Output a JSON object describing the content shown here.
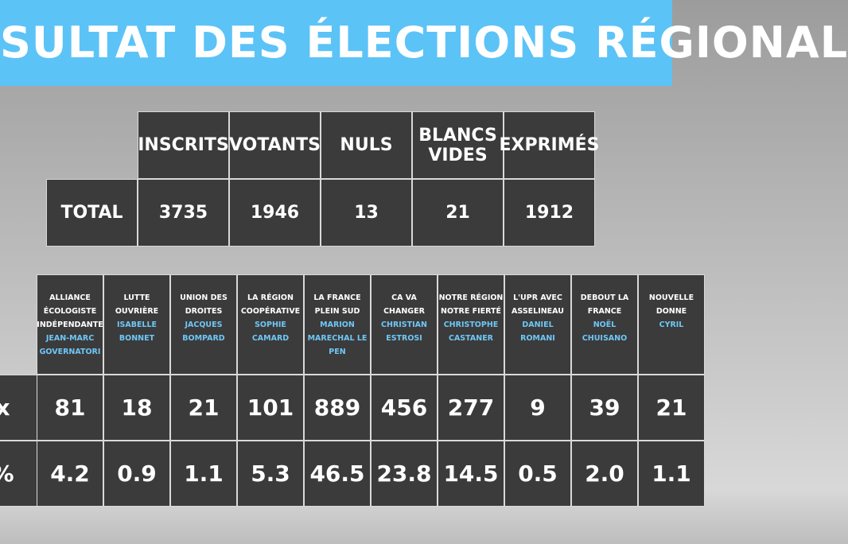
{
  "title": "SULTAT DES ÉLECTIONS RÉGIONAL",
  "summary": {
    "headers": [
      "INSCRITS",
      "VOTANTS",
      "NULS",
      "BLANCS VIDES",
      "EXPRIMÉS"
    ],
    "row_label": "TOTAL",
    "values": [
      "3735",
      "1946",
      "13",
      "21",
      "1912"
    ]
  },
  "results": {
    "row_labels": [
      "x",
      "%"
    ],
    "columns": [
      {
        "party": "ALLIANCE ÉCOLOGISTE INDÉPENDANTE",
        "candidate": "JEAN-MARC GOVERNATORI",
        "votes": "81",
        "percent": "4.2"
      },
      {
        "party": "LUTTE OUVRIÈRE",
        "candidate": "ISABELLE BONNET",
        "votes": "18",
        "percent": "0.9"
      },
      {
        "party": "UNION DES DROITES",
        "candidate": "JACQUES BOMPARD",
        "votes": "21",
        "percent": "1.1"
      },
      {
        "party": "LA RÉGION COOPÉRATIVE",
        "candidate": "SOPHIE CAMARD",
        "votes": "101",
        "percent": "5.3"
      },
      {
        "party": "LA FRANCE PLEIN SUD",
        "candidate": "MARION MARECHAL LE PEN",
        "votes": "889",
        "percent": "46.5"
      },
      {
        "party": "CA VA CHANGER",
        "candidate": "CHRISTIAN ESTROSI",
        "votes": "456",
        "percent": "23.8"
      },
      {
        "party": "NOTRE RÉGION NOTRE FIERTÉ",
        "candidate": "CHRISTOPHE CASTANER",
        "votes": "277",
        "percent": "14.5"
      },
      {
        "party": "L'UPR AVEC ASSELINEAU",
        "candidate": "DANIEL ROMANI",
        "votes": "9",
        "percent": "0.5"
      },
      {
        "party": "DEBOUT LA FRANCE",
        "candidate": "NOËL CHUISANO",
        "votes": "39",
        "percent": "2.0"
      },
      {
        "party": "NOUVELLE DONNE",
        "candidate": "CYRIL",
        "votes": "21",
        "percent": "1.1"
      }
    ]
  }
}
